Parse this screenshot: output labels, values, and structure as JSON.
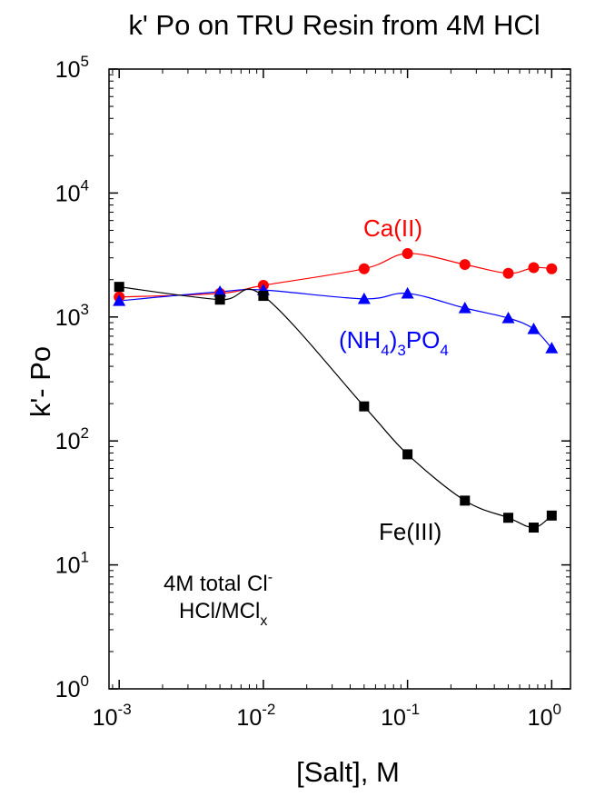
{
  "chart_data": {
    "type": "scatter",
    "title": "k' Po on TRU Resin from 4M HCl",
    "xlabel": "[Salt], M",
    "ylabel": "k'- Po",
    "x_scale": "log",
    "y_scale": "log",
    "xlim": [
      0.00085,
      1.35
    ],
    "ylim": [
      1,
      100000
    ],
    "x_ticks": [
      {
        "value": 0.001,
        "base": "10",
        "exp": "-3"
      },
      {
        "value": 0.01,
        "base": "10",
        "exp": "-2"
      },
      {
        "value": 0.1,
        "base": "10",
        "exp": "-1"
      },
      {
        "value": 1,
        "base": "10",
        "exp": "0"
      }
    ],
    "y_ticks": [
      {
        "value": 1,
        "base": "10",
        "exp": "0"
      },
      {
        "value": 10,
        "base": "10",
        "exp": "1"
      },
      {
        "value": 100,
        "base": "10",
        "exp": "2"
      },
      {
        "value": 1000,
        "base": "10",
        "exp": "3"
      },
      {
        "value": 10000,
        "base": "10",
        "exp": "4"
      },
      {
        "value": 100000,
        "base": "10",
        "exp": "5"
      }
    ],
    "grid": false,
    "series": [
      {
        "name": "Ca(II)",
        "color": "#ff0000",
        "marker": "circle",
        "x": [
          0.001,
          0.005,
          0.01,
          0.05,
          0.1,
          0.25,
          0.5,
          0.75,
          1.0
        ],
        "y": [
          1450,
          1550,
          1800,
          2450,
          3250,
          2650,
          2250,
          2500,
          2450
        ]
      },
      {
        "name": "(NH4)3PO4",
        "color": "#0000ff",
        "marker": "triangle",
        "x": [
          0.001,
          0.005,
          0.01,
          0.05,
          0.1,
          0.25,
          0.5,
          0.75,
          1.0
        ],
        "y": [
          1350,
          1600,
          1650,
          1400,
          1550,
          1180,
          980,
          800,
          560
        ]
      },
      {
        "name": "Fe(III)",
        "color": "#000000",
        "marker": "square",
        "x": [
          0.001,
          0.005,
          0.01,
          0.05,
          0.1,
          0.25,
          0.5,
          0.75,
          1.0
        ],
        "y": [
          1750,
          1380,
          1480,
          190,
          78,
          33,
          24,
          20,
          25
        ]
      }
    ],
    "annotations": {
      "ca": {
        "text": "Ca(II)",
        "color": "#ff0000"
      },
      "nh4": {
        "part1": "(NH",
        "sub1": "4",
        "part2": ")",
        "sub2": "3",
        "part3": "PO",
        "sub3": "4",
        "color": "#0000ff"
      },
      "fe": {
        "text": "Fe(III)",
        "color": "#000000"
      },
      "note_line1": {
        "text": "4M total Cl",
        "sup": "-"
      },
      "note_line2": {
        "text": "HCl/MCl",
        "sub": "x"
      }
    }
  }
}
